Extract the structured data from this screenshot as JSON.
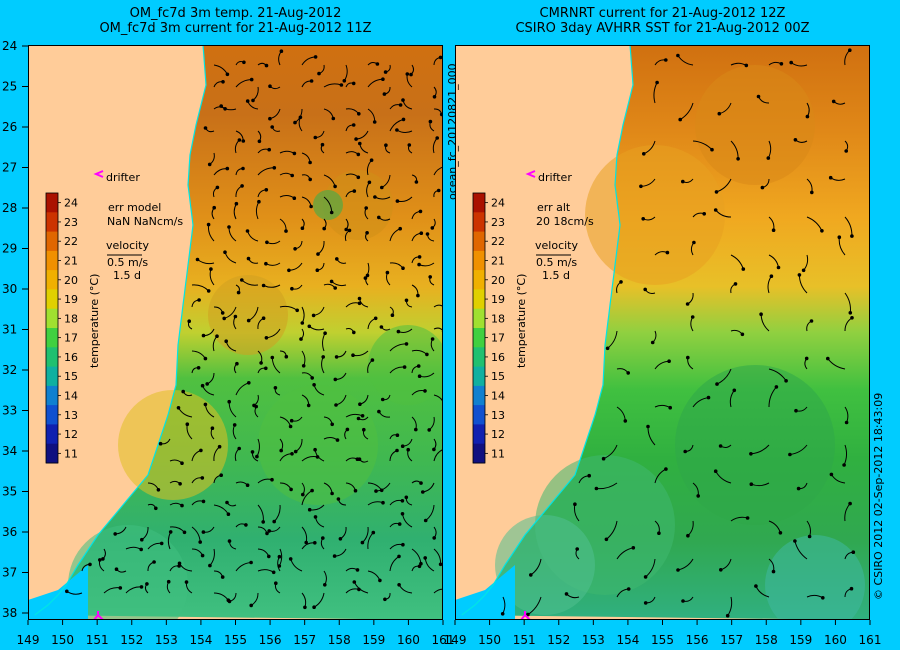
{
  "colors": {
    "background": "#00ccff",
    "land": "#ffcc99",
    "drifter": "#ff00ff",
    "coastline": "#00e5e5"
  },
  "left_panel": {
    "title_line1": "OM_fc7d 3m temp. 21-Aug-2012",
    "title_line2": "OM_fc7d 3m current for 21-Aug-2012 11Z",
    "drifter_label": "drifter",
    "err_line1": "err model",
    "err_line2": "NaN NaNcm/s",
    "velocity_label": "velocity",
    "velocity_scale": "0.5 m/s",
    "velocity_time": "1.5 d",
    "colorbar_label": "temperature (°C)"
  },
  "right_panel": {
    "title_line1": "CMRNRT current for 21-Aug-2012 12Z",
    "title_line2": "CSIRO 3day AVHRR SST for 21-Aug-2012 00Z",
    "drifter_label": "drifter",
    "err_line1": "err alt",
    "err_line2": "20 18cm/s",
    "velocity_label": "velocity",
    "velocity_scale": "0.5 m/s",
    "velocity_time": "1.5 d",
    "colorbar_label": "temperature (°C)"
  },
  "colorbar": {
    "ticks": [
      "24",
      "23",
      "22",
      "21",
      "20",
      "19",
      "18",
      "17",
      "16",
      "15",
      "14",
      "13",
      "12",
      "11"
    ],
    "colors": [
      "#aa1100",
      "#cc3300",
      "#e06600",
      "#f09000",
      "#f0b000",
      "#e0d000",
      "#a0e030",
      "#40d040",
      "#20c070",
      "#10b0a0",
      "#1080d0",
      "#1050d0",
      "#1020b0",
      "#101080"
    ]
  },
  "latitude_ticks": [
    "24",
    "25",
    "26",
    "27",
    "28",
    "29",
    "30",
    "31",
    "32",
    "33",
    "34",
    "35",
    "36",
    "37",
    "38"
  ],
  "longitude_ticks": [
    "149",
    "150",
    "151",
    "152",
    "153",
    "154",
    "155",
    "156",
    "157",
    "158",
    "159",
    "160",
    "161"
  ],
  "side_text": {
    "run_id": "ocean_fc_20120821_000",
    "credit": "© CSIRO 2012   02-Sep-2012 18:43:09"
  }
}
